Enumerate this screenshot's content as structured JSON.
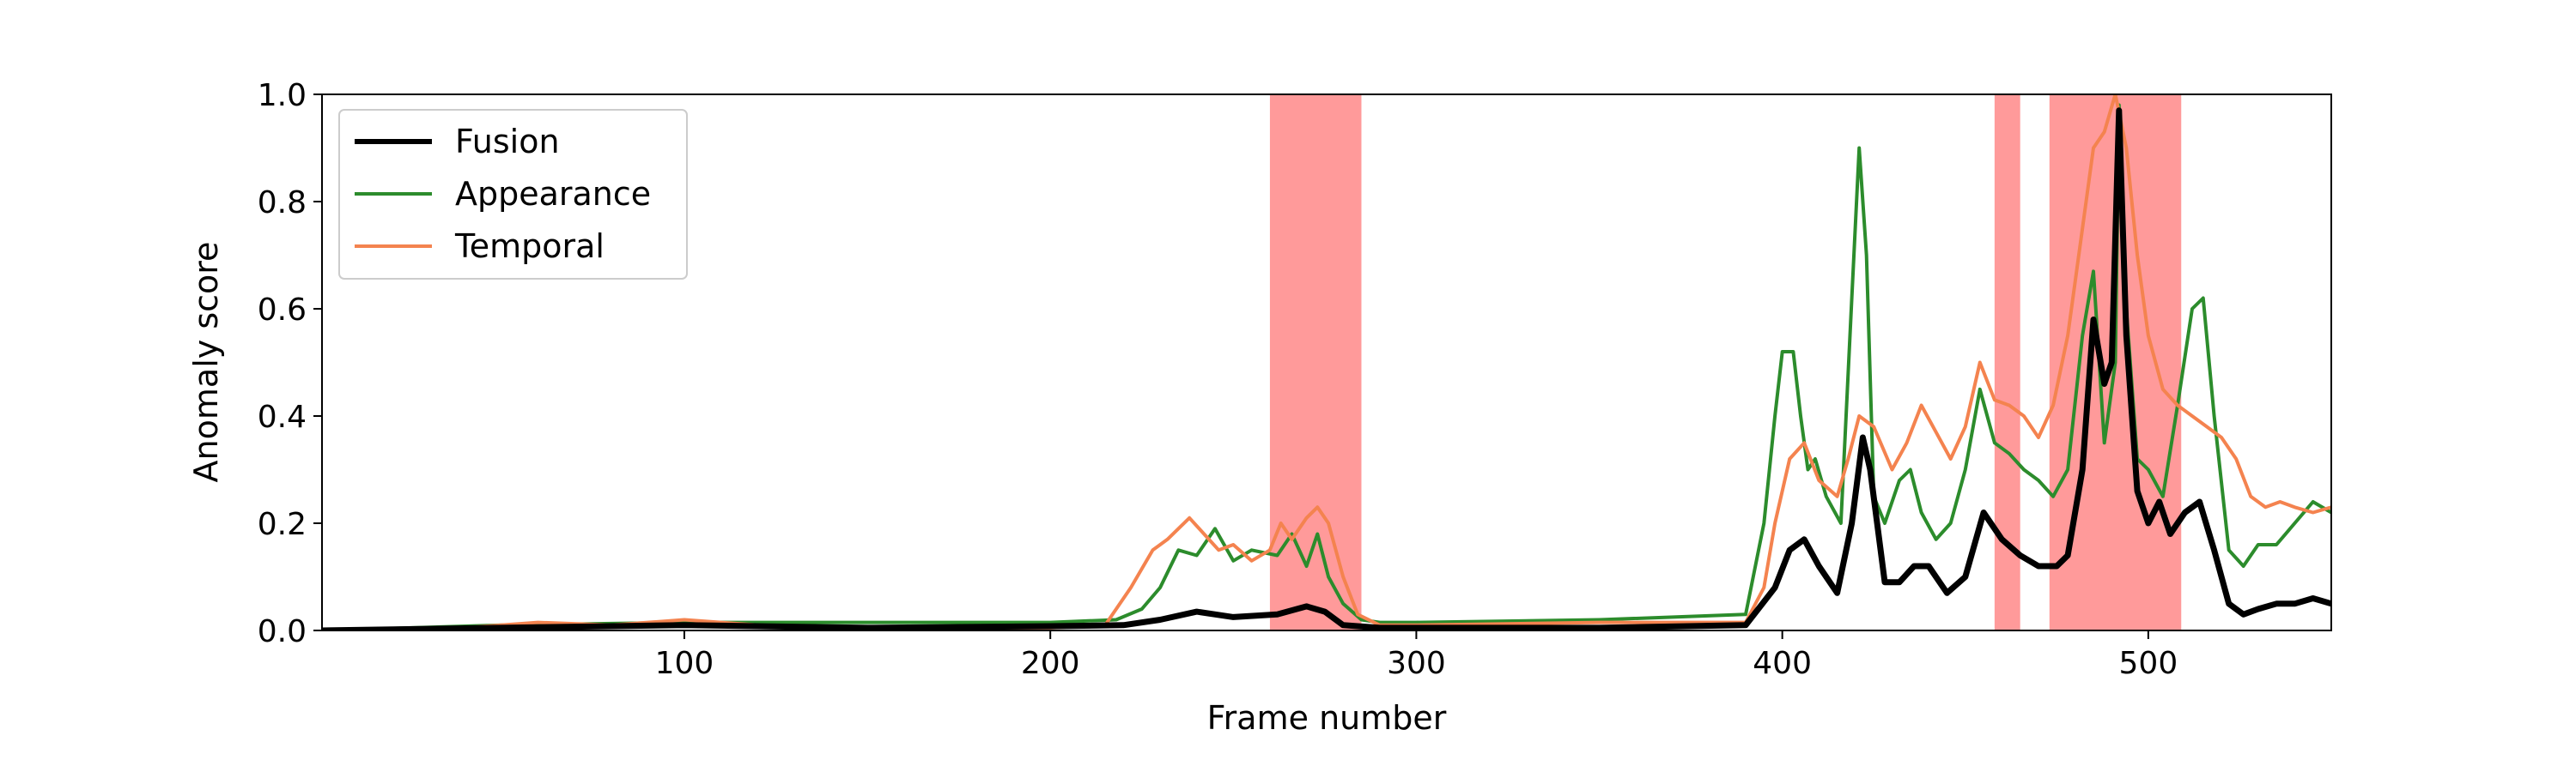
{
  "chart_data": {
    "type": "line",
    "title": "",
    "xlabel": "Frame number",
    "ylabel": "Anomaly score",
    "xlim": [
      1,
      550
    ],
    "ylim": [
      0,
      1.0
    ],
    "xticks": [
      100,
      200,
      300,
      400,
      500
    ],
    "yticks": [
      "0.0",
      "0.2",
      "0.4",
      "0.6",
      "0.8",
      "1.0"
    ],
    "grid": false,
    "legend": "top-left",
    "shaded_regions": [
      [
        260,
        285
      ],
      [
        458,
        465
      ],
      [
        473,
        509
      ]
    ],
    "shaded_color": "#ff9a9a",
    "series": [
      {
        "name": "Fusion",
        "color": "#000000",
        "x": [
          1,
          50,
          100,
          150,
          200,
          220,
          230,
          240,
          250,
          262,
          270,
          275,
          280,
          290,
          300,
          350,
          390,
          398,
          402,
          406,
          410,
          415,
          419,
          422,
          424,
          428,
          432,
          436,
          440,
          445,
          450,
          455,
          460,
          465,
          470,
          475,
          478,
          482,
          485,
          488,
          490,
          492,
          494,
          497,
          500,
          503,
          506,
          510,
          514,
          518,
          522,
          526,
          530,
          535,
          540,
          545,
          550
        ],
        "y": [
          0.0,
          0.005,
          0.01,
          0.005,
          0.008,
          0.01,
          0.02,
          0.035,
          0.025,
          0.03,
          0.045,
          0.035,
          0.01,
          0.005,
          0.005,
          0.005,
          0.01,
          0.08,
          0.15,
          0.17,
          0.12,
          0.07,
          0.2,
          0.36,
          0.3,
          0.09,
          0.09,
          0.12,
          0.12,
          0.07,
          0.1,
          0.22,
          0.17,
          0.14,
          0.12,
          0.12,
          0.14,
          0.3,
          0.58,
          0.46,
          0.5,
          0.97,
          0.55,
          0.26,
          0.2,
          0.24,
          0.18,
          0.22,
          0.24,
          0.15,
          0.05,
          0.03,
          0.04,
          0.05,
          0.05,
          0.06,
          0.05
        ]
      },
      {
        "name": "Appearance",
        "color": "#2c8c2c",
        "x": [
          1,
          50,
          100,
          150,
          200,
          218,
          225,
          230,
          235,
          240,
          245,
          250,
          255,
          262,
          266,
          270,
          273,
          276,
          280,
          285,
          290,
          300,
          350,
          390,
          395,
          398,
          400,
          403,
          405,
          407,
          409,
          412,
          416,
          419,
          421,
          423,
          425,
          428,
          432,
          435,
          438,
          442,
          446,
          450,
          454,
          458,
          462,
          466,
          470,
          474,
          478,
          482,
          485,
          488,
          491,
          492,
          494,
          497,
          500,
          504,
          508,
          512,
          515,
          518,
          522,
          526,
          530,
          535,
          540,
          545,
          550
        ],
        "y": [
          0.0,
          0.01,
          0.015,
          0.015,
          0.015,
          0.02,
          0.04,
          0.08,
          0.15,
          0.14,
          0.19,
          0.13,
          0.15,
          0.14,
          0.18,
          0.12,
          0.18,
          0.1,
          0.05,
          0.02,
          0.015,
          0.015,
          0.02,
          0.03,
          0.2,
          0.4,
          0.52,
          0.52,
          0.4,
          0.3,
          0.32,
          0.25,
          0.2,
          0.62,
          0.9,
          0.7,
          0.25,
          0.2,
          0.28,
          0.3,
          0.22,
          0.17,
          0.2,
          0.3,
          0.45,
          0.35,
          0.33,
          0.3,
          0.28,
          0.25,
          0.3,
          0.55,
          0.67,
          0.35,
          0.5,
          0.98,
          0.6,
          0.32,
          0.3,
          0.25,
          0.42,
          0.6,
          0.62,
          0.4,
          0.15,
          0.12,
          0.16,
          0.16,
          0.2,
          0.24,
          0.22
        ]
      },
      {
        "name": "Temporal",
        "color": "#f4834f",
        "x": [
          1,
          40,
          60,
          80,
          100,
          120,
          150,
          200,
          215,
          222,
          228,
          232,
          238,
          242,
          246,
          250,
          255,
          260,
          263,
          266,
          270,
          273,
          276,
          280,
          284,
          290,
          300,
          350,
          390,
          395,
          398,
          402,
          406,
          410,
          415,
          418,
          421,
          425,
          430,
          434,
          438,
          442,
          446,
          450,
          454,
          458,
          462,
          466,
          470,
          474,
          478,
          482,
          485,
          488,
          491,
          494,
          497,
          500,
          504,
          508,
          512,
          516,
          520,
          524,
          528,
          532,
          536,
          540,
          545,
          550
        ],
        "y": [
          0.0,
          0.005,
          0.015,
          0.01,
          0.02,
          0.01,
          0.005,
          0.005,
          0.01,
          0.08,
          0.15,
          0.17,
          0.21,
          0.18,
          0.15,
          0.16,
          0.13,
          0.15,
          0.2,
          0.17,
          0.21,
          0.23,
          0.2,
          0.1,
          0.03,
          0.01,
          0.01,
          0.015,
          0.015,
          0.08,
          0.2,
          0.32,
          0.35,
          0.28,
          0.25,
          0.32,
          0.4,
          0.38,
          0.3,
          0.35,
          0.42,
          0.37,
          0.32,
          0.38,
          0.5,
          0.43,
          0.42,
          0.4,
          0.36,
          0.42,
          0.55,
          0.75,
          0.9,
          0.93,
          1.0,
          0.9,
          0.7,
          0.55,
          0.45,
          0.42,
          0.4,
          0.38,
          0.36,
          0.32,
          0.25,
          0.23,
          0.24,
          0.23,
          0.22,
          0.23
        ]
      }
    ]
  }
}
